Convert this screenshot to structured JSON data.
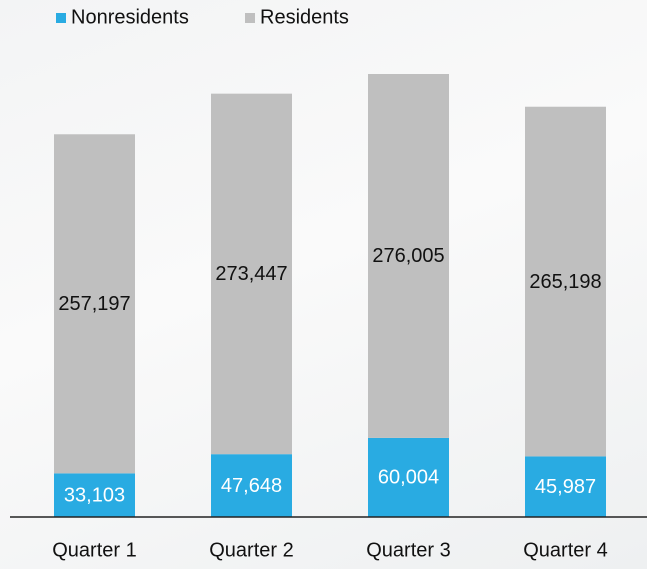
{
  "chart_data": {
    "type": "stacked_bar",
    "categories": [
      "Quarter 1",
      "Quarter 2",
      "Quarter 3",
      "Quarter 4"
    ],
    "series": [
      {
        "name": "Nonresidents",
        "color": "#29abe2",
        "values": [
          33103,
          47648,
          60004,
          45987
        ],
        "value_labels": [
          "33,103",
          "47,648",
          "60,004",
          "45,987"
        ]
      },
      {
        "name": "Residents",
        "color": "#bfbfbf",
        "values": [
          257197,
          273447,
          276005,
          265198
        ],
        "value_labels": [
          "257,197",
          "273,447",
          "276,005",
          "265,198"
        ]
      }
    ]
  }
}
